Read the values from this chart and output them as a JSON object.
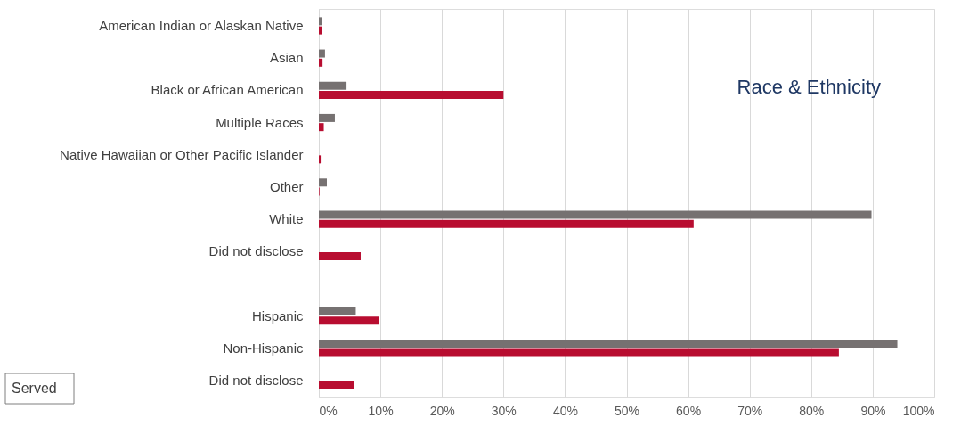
{
  "chart_data": {
    "type": "bar",
    "orientation": "horizontal",
    "title": "Race & Ethnicity",
    "categories": [
      "American Indian or Alaskan Native",
      "Asian",
      "Black or African American",
      "Multiple Races",
      "Native Hawaiian or Other Pacific Islander",
      "Other",
      "White",
      "Did not disclose",
      null,
      "Hispanic",
      "Non-Hispanic",
      "Did not disclose"
    ],
    "series": [
      {
        "color": "#767171",
        "values": [
          0.5,
          1.0,
          4.5,
          2.6,
          null,
          1.3,
          89.8,
          null,
          null,
          6.0,
          94.0,
          null
        ]
      },
      {
        "color": "#b80d30",
        "values": [
          0.5,
          0.6,
          30.0,
          0.8,
          0.3,
          0.1,
          60.9,
          6.8,
          null,
          9.7,
          84.5,
          5.7
        ]
      }
    ],
    "xlim": [
      0,
      100
    ],
    "xticks": [
      {
        "value": 0,
        "label": "0%"
      },
      {
        "value": 10,
        "label": "10%"
      },
      {
        "value": 20,
        "label": "20%"
      },
      {
        "value": 30,
        "label": "30%"
      },
      {
        "value": 40,
        "label": "40%"
      },
      {
        "value": 50,
        "label": "50%"
      },
      {
        "value": 60,
        "label": "60%"
      },
      {
        "value": 70,
        "label": "70%"
      },
      {
        "value": 80,
        "label": "80%"
      },
      {
        "value": 90,
        "label": "90%"
      },
      {
        "value": 100,
        "label": "100%"
      }
    ],
    "annotations": [
      "Served"
    ],
    "grid": "x",
    "legend": false
  }
}
